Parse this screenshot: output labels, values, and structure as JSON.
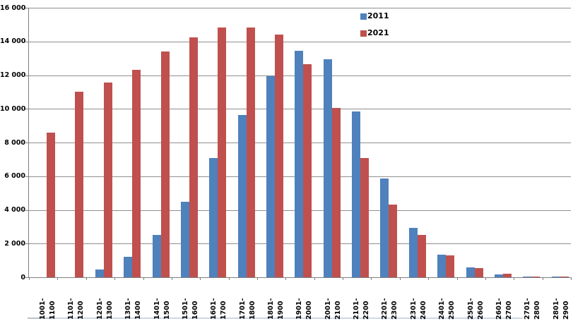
{
  "chart_data": {
    "type": "bar",
    "title": "",
    "xlabel": "",
    "ylabel": "",
    "categories": [
      "1001-1100",
      "1101-1200",
      "1201-1300",
      "1301-1400",
      "1401-1500",
      "1501-1600",
      "1601-1700",
      "1701-1800",
      "1801-1900",
      "1901-2000",
      "2001-2100",
      "2101-2200",
      "2201-2300",
      "2301-2400",
      "2401-2500",
      "2501-2600",
      "2601-2700",
      "2701-2800",
      "2801-2900"
    ],
    "series": [
      {
        "name": "2011",
        "color": "#4F81BD",
        "values": [
          0,
          0,
          450,
          1200,
          2500,
          4470,
          7100,
          9650,
          11950,
          13450,
          12950,
          9850,
          5850,
          2950,
          1350,
          600,
          150,
          50,
          50
        ]
      },
      {
        "name": "2021",
        "color": "#C0504D",
        "values": [
          8600,
          11000,
          11550,
          12300,
          13400,
          14250,
          14850,
          14850,
          14400,
          12650,
          10050,
          7100,
          4300,
          2500,
          1300,
          550,
          200,
          50,
          50
        ]
      }
    ],
    "ylim": [
      0,
      16000
    ],
    "ytick_step": 2000,
    "ytick_labels": [
      "0",
      "2 000",
      "4 000",
      "6 000",
      "8 000",
      "10 000",
      "12 000",
      "14 000",
      "16 000"
    ],
    "grid": true,
    "legend_position": "top-center-inside"
  },
  "colors": {
    "series_2011": "#4F81BD",
    "series_2021": "#C0504D",
    "gridline": "#8f8f8f",
    "axis": "#7f7f7f",
    "background": "#ffffff"
  }
}
